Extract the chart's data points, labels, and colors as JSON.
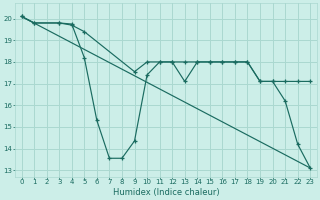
{
  "xlabel": "Humidex (Indice chaleur)",
  "xlim": [
    -0.5,
    23.5
  ],
  "ylim": [
    12.7,
    20.7
  ],
  "yticks": [
    13,
    14,
    15,
    16,
    17,
    18,
    19,
    20
  ],
  "xticks": [
    0,
    1,
    2,
    3,
    4,
    5,
    6,
    7,
    8,
    9,
    10,
    11,
    12,
    13,
    14,
    15,
    16,
    17,
    18,
    19,
    20,
    21,
    22,
    23
  ],
  "bg_color": "#cceee8",
  "grid_color": "#aad8d0",
  "line_color": "#1a6b60",
  "line1_x": [
    0,
    1,
    3,
    4,
    5,
    6,
    7,
    8,
    9,
    10,
    11,
    12,
    13,
    14,
    15,
    16,
    17,
    18,
    19,
    20,
    21,
    22,
    23
  ],
  "line1_y": [
    20.1,
    19.8,
    19.8,
    19.75,
    18.2,
    15.3,
    13.55,
    13.55,
    14.35,
    17.4,
    18.0,
    18.0,
    17.1,
    18.0,
    18.0,
    18.0,
    18.0,
    18.0,
    17.1,
    17.1,
    16.2,
    14.2,
    13.1
  ],
  "line2_x": [
    0,
    1,
    3,
    4,
    5,
    9,
    10,
    11,
    12,
    13,
    14,
    15,
    16,
    17,
    18,
    19,
    20,
    21,
    22,
    23
  ],
  "line2_y": [
    20.1,
    19.8,
    19.8,
    19.7,
    19.4,
    17.55,
    18.0,
    18.0,
    18.0,
    18.0,
    18.0,
    18.0,
    18.0,
    18.0,
    18.0,
    17.1,
    17.1,
    17.1,
    17.1,
    17.1
  ],
  "line3_x": [
    0,
    23
  ],
  "line3_y": [
    20.1,
    13.1
  ]
}
